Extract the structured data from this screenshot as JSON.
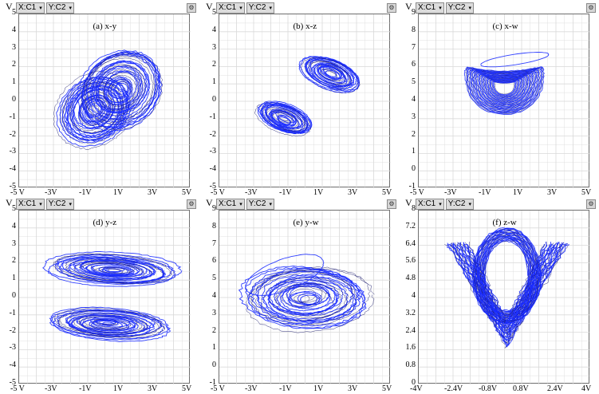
{
  "toolbar": {
    "x_label": "X:",
    "x_channel": "C1",
    "y_label": "Y:",
    "y_channel": "C2",
    "v_label": "V",
    "config_icon": "gear-icon"
  },
  "trace_color": "#1a2bff",
  "trace_edge_color": "#1c1c6e",
  "grid_color": "#d9d9d9",
  "chart_data": [
    {
      "type": "scatter",
      "title": "(a) x-y",
      "yticks": [
        "5",
        "4",
        "3",
        "2",
        "1",
        "0",
        "-1",
        "-2",
        "-3",
        "-4",
        "-5"
      ],
      "ylim": [
        -5,
        5
      ],
      "xticks": [
        "-5 V",
        "-3V",
        "-1V",
        "1V",
        "3V",
        "5V"
      ],
      "xlim": [
        -5,
        5
      ],
      "grid": true
    },
    {
      "type": "scatter",
      "title": "(b) x-z",
      "yticks": [
        "5",
        "4",
        "3",
        "2",
        "1",
        "0",
        "-1",
        "-2",
        "-3",
        "-4",
        "-5"
      ],
      "ylim": [
        -5,
        5
      ],
      "xticks": [
        "-5 V",
        "-3V",
        "-1V",
        "1V",
        "3V",
        "5V"
      ],
      "xlim": [
        -5,
        5
      ],
      "grid": true
    },
    {
      "type": "scatter",
      "title": "(c) x-w",
      "yticks": [
        "9",
        "8",
        "7",
        "6",
        "5",
        "4",
        "3",
        "2",
        "1",
        "0",
        "-1"
      ],
      "ylim": [
        -1,
        9
      ],
      "xticks": [
        "-5 V",
        "-3V",
        "-1V",
        "1V",
        "3V",
        "5V"
      ],
      "xlim": [
        -5,
        5
      ],
      "grid": true
    },
    {
      "type": "scatter",
      "title": "(d) y-z",
      "yticks": [
        "5",
        "4",
        "3",
        "2",
        "1",
        "0",
        "-1",
        "-2",
        "-3",
        "-4",
        "-5"
      ],
      "ylim": [
        -5,
        5
      ],
      "xticks": [
        "-5 V",
        "-3V",
        "-1V",
        "1V",
        "3V",
        "5V"
      ],
      "xlim": [
        -5,
        5
      ],
      "grid": true
    },
    {
      "type": "scatter",
      "title": "(e) y-w",
      "yticks": [
        "9",
        "8",
        "7",
        "6",
        "5",
        "4",
        "3",
        "2",
        "1",
        "0",
        "-1"
      ],
      "ylim": [
        -1,
        9
      ],
      "xticks": [
        "-5 V",
        "-3V",
        "-1V",
        "1V",
        "3V",
        "5V"
      ],
      "xlim": [
        -5,
        5
      ],
      "grid": true
    },
    {
      "type": "scatter",
      "title": "(f) z-w",
      "yticks": [
        "8",
        "7.2",
        "6.4",
        "5.6",
        "4.8",
        "4",
        "3.2",
        "2.4",
        "1.6",
        "0.8",
        "0"
      ],
      "ylim": [
        0,
        8
      ],
      "xticks": [
        "-4V",
        "-2.4V",
        "-0.8V",
        "0.8V",
        "2.4V",
        "4V"
      ],
      "xlim": [
        -4,
        4
      ],
      "grid": true
    }
  ]
}
